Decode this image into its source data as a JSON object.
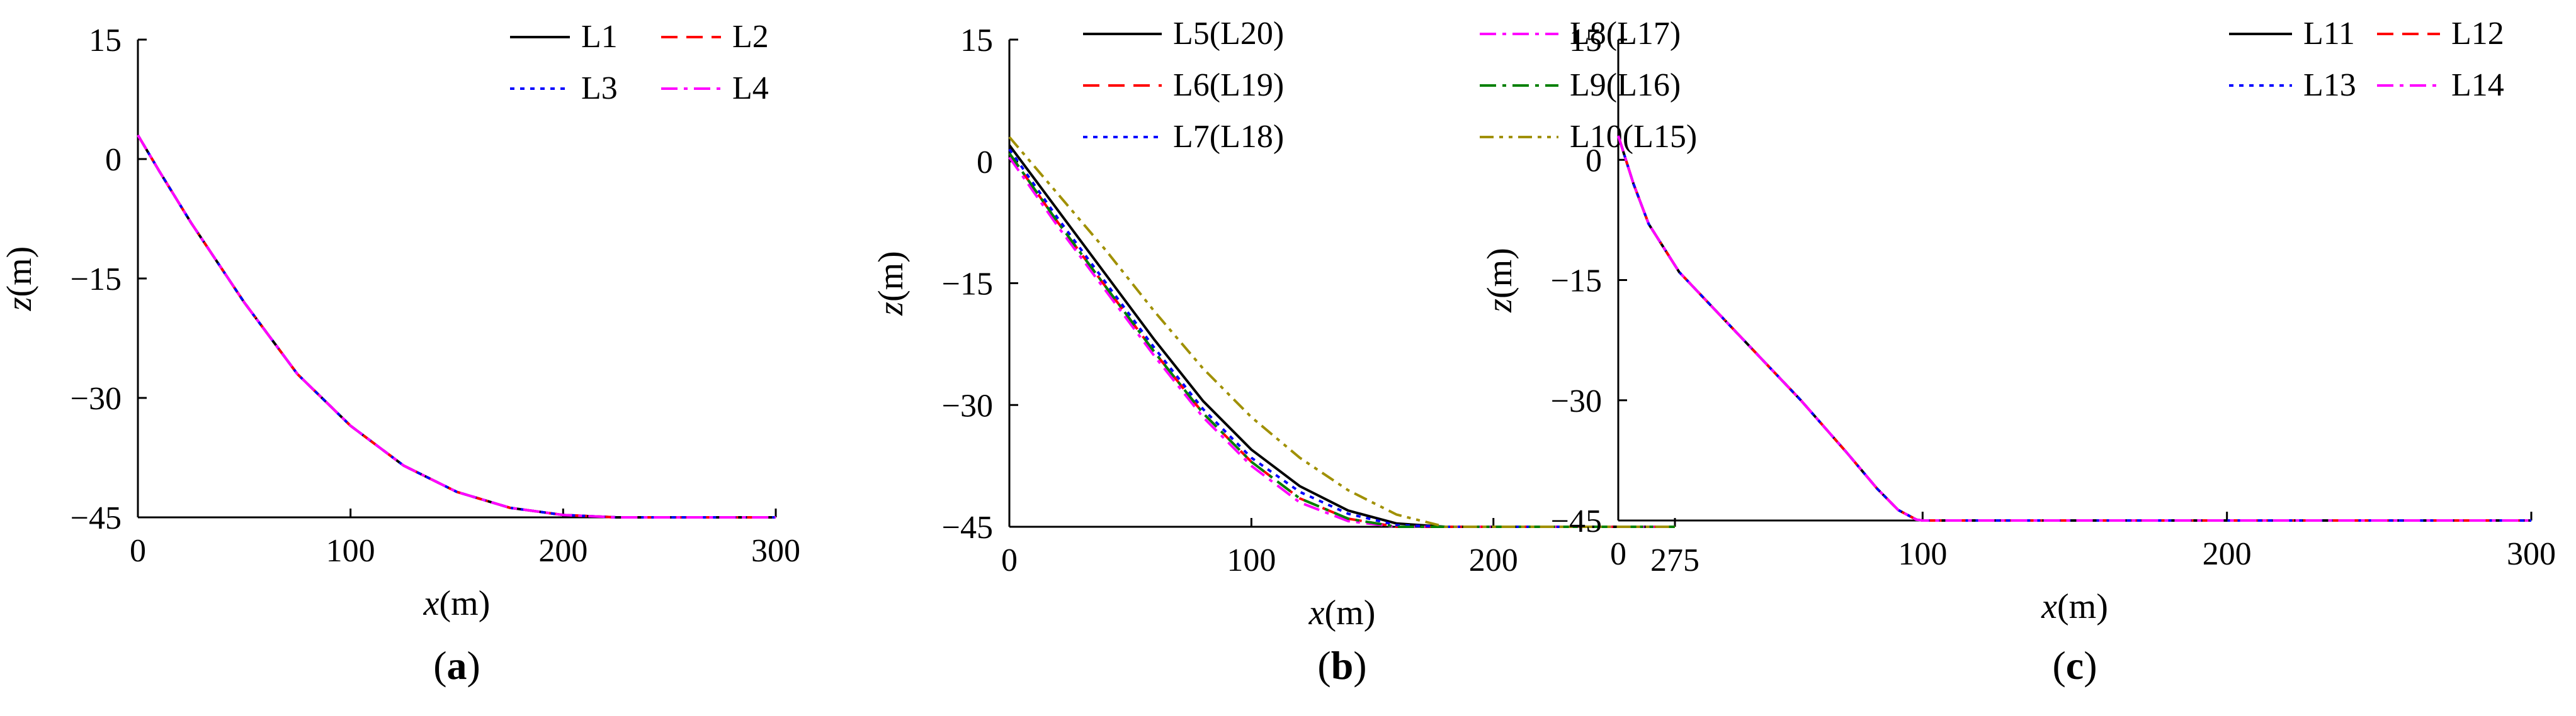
{
  "chart_data": [
    {
      "type": "line",
      "panel_label": "(a)",
      "panel_letter": "a",
      "xlabel_var": "x",
      "xlabel_unit": "(m)",
      "ylabel_var": "z",
      "ylabel_unit": "(m)",
      "xlim": [
        0,
        300
      ],
      "ylim": [
        -45,
        15
      ],
      "xticks": [
        0,
        100,
        200,
        300
      ],
      "yticks": [
        15,
        0,
        -15,
        -30,
        -45
      ],
      "grid": false,
      "legend_position": "top-right",
      "legend_columns": 2,
      "series": [
        {
          "name": "L1",
          "color": "#000000",
          "dash": "solid",
          "x": [
            0,
            10,
            25,
            50,
            75,
            100,
            125,
            150,
            175,
            200,
            225,
            250,
            275,
            300
          ],
          "y": [
            3,
            -1.5,
            -8,
            -18,
            -27,
            -33.5,
            -38.5,
            -41.8,
            -43.8,
            -44.7,
            -45,
            -45,
            -45,
            -45
          ]
        },
        {
          "name": "L2",
          "color": "#ff0000",
          "dash": "dashed",
          "x": [
            0,
            10,
            25,
            50,
            75,
            100,
            125,
            150,
            175,
            200,
            225,
            250,
            275,
            300
          ],
          "y": [
            3,
            -1.5,
            -8,
            -18,
            -27,
            -33.5,
            -38.5,
            -41.8,
            -43.8,
            -44.7,
            -45,
            -45,
            -45,
            -45
          ]
        },
        {
          "name": "L3",
          "color": "#0000ff",
          "dash": "dotted",
          "x": [
            0,
            10,
            25,
            50,
            75,
            100,
            125,
            150,
            175,
            200,
            225,
            250,
            275,
            300
          ],
          "y": [
            3,
            -1.5,
            -8,
            -18,
            -27,
            -33.5,
            -38.5,
            -41.8,
            -43.8,
            -44.7,
            -45,
            -45,
            -45,
            -45
          ]
        },
        {
          "name": "L4",
          "color": "#ff00ff",
          "dash": "dashdot",
          "x": [
            0,
            10,
            25,
            50,
            75,
            100,
            125,
            150,
            175,
            200,
            225,
            250,
            275,
            300
          ],
          "y": [
            3,
            -1.5,
            -8,
            -18,
            -27,
            -33.5,
            -38.5,
            -41.8,
            -43.8,
            -44.7,
            -45,
            -45,
            -45,
            -45
          ]
        }
      ]
    },
    {
      "type": "line",
      "panel_label": "(b)",
      "panel_letter": "b",
      "xlabel_var": "x",
      "xlabel_unit": "(m)",
      "ylabel_var": "z",
      "ylabel_unit": "(m)",
      "xlim": [
        0,
        275
      ],
      "ylim": [
        -45,
        15
      ],
      "xticks": [
        0,
        100,
        200,
        275
      ],
      "yticks": [
        15,
        0,
        -15,
        -30,
        -45
      ],
      "grid": false,
      "legend_position": "top",
      "legend_columns": 2,
      "series": [
        {
          "name": "L5(L20)",
          "color": "#000000",
          "dash": "solid",
          "x": [
            0,
            20,
            40,
            60,
            80,
            100,
            120,
            140,
            160,
            180,
            200,
            275
          ],
          "y": [
            2,
            -6,
            -14,
            -22,
            -29.5,
            -35.5,
            -40,
            -43,
            -44.6,
            -45,
            -45,
            -45
          ]
        },
        {
          "name": "L6(L19)",
          "color": "#ff0000",
          "dash": "dashed",
          "x": [
            0,
            20,
            40,
            60,
            80,
            100,
            120,
            140,
            160,
            180,
            200,
            275
          ],
          "y": [
            1,
            -7.5,
            -15.5,
            -23.5,
            -31,
            -37,
            -41.5,
            -44,
            -45,
            -45,
            -45,
            -45
          ]
        },
        {
          "name": "L7(L18)",
          "color": "#0000ff",
          "dash": "dotted",
          "x": [
            0,
            20,
            40,
            60,
            80,
            100,
            120,
            140,
            160,
            180,
            200,
            275
          ],
          "y": [
            1.5,
            -7,
            -15,
            -23,
            -30.5,
            -36.5,
            -40.7,
            -43.4,
            -44.8,
            -45,
            -45,
            -45
          ]
        },
        {
          "name": "L8(L17)",
          "color": "#ff00ff",
          "dash": "dashdot",
          "x": [
            0,
            20,
            40,
            60,
            80,
            100,
            120,
            140,
            160,
            180,
            200,
            275
          ],
          "y": [
            0.5,
            -8,
            -16,
            -24,
            -31.5,
            -37.5,
            -42,
            -44.3,
            -45,
            -45,
            -45,
            -45
          ]
        },
        {
          "name": "L9(L16)",
          "color": "#008000",
          "dash": "dashdot",
          "x": [
            0,
            20,
            40,
            60,
            80,
            100,
            120,
            140,
            160,
            180,
            200,
            275
          ],
          "y": [
            1,
            -7.5,
            -15.5,
            -23.5,
            -31,
            -37,
            -41.5,
            -44,
            -45,
            -45,
            -45,
            -45
          ]
        },
        {
          "name": "L10(L15)",
          "color": "#a09000",
          "dash": "dashdotdot",
          "x": [
            0,
            20,
            40,
            60,
            80,
            100,
            120,
            140,
            160,
            180,
            200,
            275
          ],
          "y": [
            3,
            -4,
            -11,
            -18.5,
            -25.5,
            -31.5,
            -36.5,
            -40.5,
            -43.5,
            -45,
            -45,
            -45
          ]
        }
      ]
    },
    {
      "type": "line",
      "panel_label": "(c)",
      "panel_letter": "c",
      "xlabel_var": "x",
      "xlabel_unit": "(m)",
      "ylabel_var": "z",
      "ylabel_unit": "(m)",
      "xlim": [
        0,
        300
      ],
      "ylim": [
        -45,
        15
      ],
      "xticks": [
        0,
        100,
        200,
        300
      ],
      "yticks": [
        15,
        0,
        -15,
        -30,
        -45
      ],
      "grid": false,
      "legend_position": "top-right",
      "legend_columns": 2,
      "series": [
        {
          "name": "L11",
          "color": "#000000",
          "dash": "solid",
          "x": [
            0,
            5,
            10,
            20,
            30,
            45,
            60,
            75,
            85,
            92,
            98,
            100,
            150,
            200,
            250,
            300
          ],
          "y": [
            3,
            -3,
            -8,
            -14,
            -18,
            -24,
            -30,
            -36.5,
            -41,
            -43.7,
            -44.9,
            -45,
            -45,
            -45,
            -45,
            -45
          ]
        },
        {
          "name": "L12",
          "color": "#ff0000",
          "dash": "dashed",
          "x": [
            0,
            5,
            10,
            20,
            30,
            45,
            60,
            75,
            85,
            92,
            98,
            100,
            150,
            200,
            250,
            300
          ],
          "y": [
            3,
            -3,
            -8,
            -14,
            -18,
            -24,
            -30,
            -36.5,
            -41,
            -43.7,
            -44.9,
            -45,
            -45,
            -45,
            -45,
            -45
          ]
        },
        {
          "name": "L13",
          "color": "#0000ff",
          "dash": "dotted",
          "x": [
            0,
            5,
            10,
            20,
            30,
            45,
            60,
            75,
            85,
            92,
            98,
            100,
            150,
            200,
            250,
            300
          ],
          "y": [
            3,
            -3,
            -8,
            -14,
            -18,
            -24,
            -30,
            -36.5,
            -41,
            -43.7,
            -44.9,
            -45,
            -45,
            -45,
            -45,
            -45
          ]
        },
        {
          "name": "L14",
          "color": "#ff00ff",
          "dash": "dashdot",
          "x": [
            0,
            5,
            10,
            20,
            30,
            45,
            60,
            75,
            85,
            92,
            98,
            100,
            150,
            200,
            250,
            300
          ],
          "y": [
            3,
            -3,
            -8,
            -14,
            -18,
            -24,
            -30,
            -36.5,
            -41,
            -43.7,
            -44.9,
            -45,
            -45,
            -45,
            -45,
            -45
          ]
        }
      ]
    }
  ]
}
